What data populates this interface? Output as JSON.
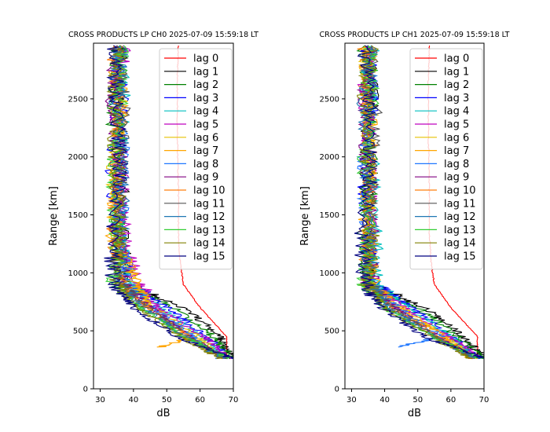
{
  "figure": {
    "background": "#ffffff"
  },
  "lag_colors": [
    "#ff0000",
    "#000000",
    "#008000",
    "#0000ff",
    "#00bfbf",
    "#bf00bf",
    "#e6c200",
    "#ffa500",
    "#1f77ff",
    "#800080",
    "#ff7f0e",
    "#555555",
    "#1f77b4",
    "#32cd32",
    "#808000",
    "#000080"
  ],
  "chart_data": [
    {
      "type": "line",
      "title": "CROSS PRODUCTS LP CH0 2025-07-09 15:59:18 LT",
      "xlabel": "dB",
      "ylabel": "Range [km]",
      "xlim": [
        28,
        70
      ],
      "ylim": [
        0,
        2980
      ],
      "xticks": [
        "30",
        "40",
        "50",
        "60",
        "70"
      ],
      "yticks": [
        "0",
        "500",
        "1000",
        "1500",
        "2000",
        "2500"
      ],
      "legend_position": "upper right",
      "series": [
        {
          "name": "lag 0",
          "x": [
            68,
            68,
            60,
            55,
            54,
            53.5,
            53.5,
            53.2,
            53.2,
            53.5
          ],
          "y": [
            260,
            450,
            700,
            900,
            1100,
            1350,
            1700,
            2200,
            2700,
            2960
          ]
        },
        {
          "name": "lag 1",
          "x": [
            70,
            66,
            55,
            38,
            37,
            36,
            35,
            36
          ],
          "y": [
            260,
            450,
            700,
            900,
            1300,
            1900,
            2500,
            2960
          ]
        },
        {
          "name": "lag 2",
          "x": [
            70,
            64,
            52,
            37,
            36,
            35,
            34,
            36
          ],
          "y": [
            260,
            450,
            700,
            900,
            1300,
            1900,
            2500,
            2960
          ]
        },
        {
          "name": "lag 3",
          "x": [
            69,
            62,
            50,
            40,
            35,
            34,
            36,
            35
          ],
          "y": [
            260,
            450,
            700,
            900,
            1300,
            1900,
            2500,
            2960
          ]
        },
        {
          "name": "lag 4",
          "x": [
            68,
            60,
            48,
            39,
            36,
            35,
            37,
            36
          ],
          "y": [
            260,
            450,
            700,
            900,
            1300,
            1900,
            2500,
            2960
          ]
        },
        {
          "name": "lag 5",
          "x": [
            69,
            61,
            47,
            42,
            37,
            36,
            35,
            37
          ],
          "y": [
            260,
            450,
            700,
            900,
            1300,
            1900,
            2500,
            2960
          ]
        },
        {
          "name": "lag 6",
          "x": [
            67,
            59,
            46,
            40,
            35,
            34,
            36,
            35
          ],
          "y": [
            260,
            450,
            700,
            900,
            1300,
            1900,
            2500,
            2960
          ]
        },
        {
          "name": "lag 7",
          "x": [
            48,
            58,
            45,
            41,
            34,
            35,
            36,
            34
          ],
          "y": [
            360,
            450,
            700,
            900,
            1300,
            1900,
            2500,
            2960
          ]
        },
        {
          "name": "lag 8",
          "x": [
            66,
            58,
            46,
            38,
            36,
            37,
            35,
            36
          ],
          "y": [
            260,
            450,
            700,
            900,
            1300,
            1900,
            2500,
            2960
          ]
        },
        {
          "name": "lag 9",
          "x": [
            67,
            57,
            45,
            37,
            35,
            36,
            34,
            35
          ],
          "y": [
            260,
            450,
            700,
            900,
            1300,
            1900,
            2500,
            2960
          ]
        },
        {
          "name": "lag 10",
          "x": [
            66,
            56,
            44,
            36,
            34,
            35,
            36,
            34
          ],
          "y": [
            260,
            450,
            700,
            900,
            1300,
            1900,
            2500,
            2960
          ]
        },
        {
          "name": "lag 11",
          "x": [
            68,
            56,
            44,
            36,
            35,
            36,
            37,
            35
          ],
          "y": [
            260,
            450,
            700,
            900,
            1300,
            1900,
            2500,
            2960
          ]
        },
        {
          "name": "lag 12",
          "x": [
            67,
            55,
            43,
            35,
            36,
            37,
            35,
            36
          ],
          "y": [
            260,
            450,
            700,
            900,
            1300,
            1900,
            2500,
            2960
          ]
        },
        {
          "name": "lag 13",
          "x": [
            69,
            55,
            42,
            34,
            35,
            34,
            36,
            37
          ],
          "y": [
            260,
            450,
            700,
            900,
            1300,
            1900,
            2500,
            2960
          ]
        },
        {
          "name": "lag 14",
          "x": [
            66,
            54,
            41,
            35,
            36,
            35,
            34,
            36
          ],
          "y": [
            260,
            450,
            700,
            900,
            1300,
            1900,
            2500,
            2960
          ]
        },
        {
          "name": "lag 15",
          "x": [
            70,
            53,
            40,
            34,
            33,
            36,
            35,
            34
          ],
          "y": [
            260,
            450,
            700,
            900,
            1300,
            1900,
            2500,
            2960
          ]
        }
      ]
    },
    {
      "type": "line",
      "title": "CROSS PRODUCTS LP CH1 2025-07-09 15:59:18 LT",
      "xlabel": "dB",
      "ylabel": "Range [km]",
      "xlim": [
        28,
        70
      ],
      "ylim": [
        0,
        2980
      ],
      "xticks": [
        "30",
        "40",
        "50",
        "60",
        "70"
      ],
      "yticks": [
        "0",
        "500",
        "1000",
        "1500",
        "2000",
        "2500"
      ],
      "legend_position": "upper right",
      "series": [
        {
          "name": "lag 0",
          "x": [
            68,
            68,
            60,
            55,
            54,
            53.5,
            53.5,
            53.2,
            53.2,
            53.5
          ],
          "y": [
            260,
            450,
            700,
            900,
            1100,
            1350,
            1700,
            2200,
            2700,
            2960
          ]
        },
        {
          "name": "lag 1",
          "x": [
            70,
            64,
            52,
            36,
            35,
            34,
            36,
            35
          ],
          "y": [
            260,
            450,
            700,
            900,
            1300,
            1900,
            2500,
            2960
          ]
        },
        {
          "name": "lag 2",
          "x": [
            70,
            62,
            50,
            35,
            34,
            36,
            35,
            34
          ],
          "y": [
            260,
            450,
            700,
            900,
            1300,
            1900,
            2500,
            2960
          ]
        },
        {
          "name": "lag 3",
          "x": [
            69,
            60,
            48,
            37,
            35,
            34,
            36,
            35
          ],
          "y": [
            260,
            450,
            700,
            900,
            1300,
            1900,
            2500,
            2960
          ]
        },
        {
          "name": "lag 4",
          "x": [
            68,
            60,
            47,
            38,
            37,
            36,
            35,
            36
          ],
          "y": [
            260,
            450,
            700,
            900,
            1300,
            1900,
            2500,
            2960
          ]
        },
        {
          "name": "lag 5",
          "x": [
            69,
            59,
            46,
            36,
            35,
            36,
            34,
            35
          ],
          "y": [
            260,
            450,
            700,
            900,
            1300,
            1900,
            2500,
            2960
          ]
        },
        {
          "name": "lag 6",
          "x": [
            67,
            58,
            45,
            35,
            36,
            35,
            36,
            34
          ],
          "y": [
            260,
            450,
            700,
            900,
            1300,
            1900,
            2500,
            2960
          ]
        },
        {
          "name": "lag 7",
          "x": [
            66,
            58,
            44,
            37,
            34,
            35,
            36,
            35
          ],
          "y": [
            260,
            450,
            700,
            900,
            1300,
            1900,
            2500,
            2960
          ]
        },
        {
          "name": "lag 8",
          "x": [
            44,
            57,
            44,
            36,
            35,
            34,
            36,
            35
          ],
          "y": [
            360,
            450,
            700,
            900,
            1300,
            1900,
            2500,
            2960
          ]
        },
        {
          "name": "lag 9",
          "x": [
            67,
            56,
            43,
            35,
            36,
            35,
            34,
            36
          ],
          "y": [
            260,
            450,
            700,
            900,
            1300,
            1900,
            2500,
            2960
          ]
        },
        {
          "name": "lag 10",
          "x": [
            66,
            56,
            42,
            34,
            35,
            36,
            35,
            34
          ],
          "y": [
            260,
            450,
            700,
            900,
            1300,
            1900,
            2500,
            2960
          ]
        },
        {
          "name": "lag 11",
          "x": [
            68,
            55,
            42,
            36,
            35,
            36,
            37,
            35
          ],
          "y": [
            260,
            450,
            700,
            900,
            1300,
            1900,
            2500,
            2960
          ]
        },
        {
          "name": "lag 12",
          "x": [
            67,
            55,
            41,
            35,
            36,
            35,
            34,
            36
          ],
          "y": [
            260,
            450,
            700,
            900,
            1300,
            1900,
            2500,
            2960
          ]
        },
        {
          "name": "lag 13",
          "x": [
            69,
            54,
            40,
            34,
            35,
            34,
            36,
            35
          ],
          "y": [
            260,
            450,
            700,
            900,
            1300,
            1900,
            2500,
            2960
          ]
        },
        {
          "name": "lag 14",
          "x": [
            66,
            54,
            40,
            35,
            36,
            35,
            34,
            36
          ],
          "y": [
            260,
            450,
            700,
            900,
            1300,
            1900,
            2500,
            2960
          ]
        },
        {
          "name": "lag 15",
          "x": [
            70,
            52,
            39,
            34,
            33,
            36,
            35,
            34
          ],
          "y": [
            260,
            450,
            700,
            900,
            1300,
            1900,
            2500,
            2960
          ]
        }
      ]
    }
  ]
}
